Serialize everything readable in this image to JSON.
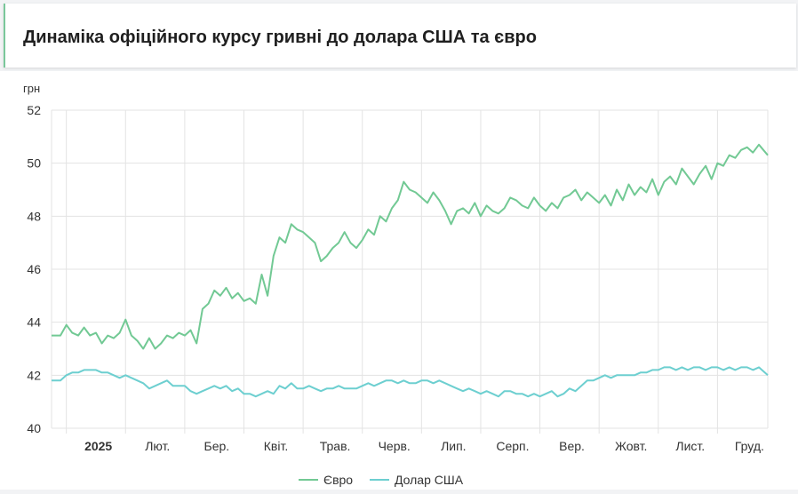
{
  "page": {
    "title": "Динаміка офіційного курсу гривні до долара США та євро"
  },
  "chart_data": {
    "type": "line",
    "title": "Динаміка офіційного курсу гривні до долара США та євро",
    "ylabel": "грн",
    "ylim": [
      40,
      52
    ],
    "yticks": [
      40,
      42,
      44,
      46,
      48,
      50,
      52
    ],
    "xlim": [
      -0.25,
      11.85
    ],
    "x_tick_labels": [
      "2025",
      "Лют.",
      "Бер.",
      "Квіт.",
      "Трав.",
      "Черв.",
      "Лип.",
      "Серп.",
      "Вер.",
      "Жовт.",
      "Лист.",
      "Груд."
    ],
    "x_tick_positions": [
      0,
      1,
      2,
      3,
      4,
      5,
      6,
      7,
      8,
      9,
      10,
      11
    ],
    "grid": true,
    "legend_position": "bottom",
    "series": [
      {
        "name": "Євро",
        "color": "#72c994",
        "x": [
          -0.25,
          -0.1,
          0.0,
          0.1,
          0.2,
          0.3,
          0.4,
          0.5,
          0.6,
          0.7,
          0.8,
          0.9,
          1.0,
          1.1,
          1.2,
          1.3,
          1.4,
          1.5,
          1.6,
          1.7,
          1.8,
          1.9,
          2.0,
          2.1,
          2.2,
          2.3,
          2.4,
          2.5,
          2.6,
          2.7,
          2.8,
          2.9,
          3.0,
          3.1,
          3.2,
          3.3,
          3.4,
          3.5,
          3.6,
          3.7,
          3.8,
          3.9,
          4.0,
          4.1,
          4.2,
          4.3,
          4.4,
          4.5,
          4.6,
          4.7,
          4.8,
          4.9,
          5.0,
          5.1,
          5.2,
          5.3,
          5.4,
          5.5,
          5.6,
          5.7,
          5.8,
          5.9,
          6.0,
          6.1,
          6.2,
          6.3,
          6.4,
          6.5,
          6.6,
          6.7,
          6.8,
          6.9,
          7.0,
          7.1,
          7.2,
          7.3,
          7.4,
          7.5,
          7.6,
          7.7,
          7.8,
          7.9,
          8.0,
          8.1,
          8.2,
          8.3,
          8.4,
          8.5,
          8.6,
          8.7,
          8.8,
          8.9,
          9.0,
          9.1,
          9.2,
          9.3,
          9.4,
          9.5,
          9.6,
          9.7,
          9.8,
          9.9,
          10.0,
          10.1,
          10.2,
          10.3,
          10.4,
          10.5,
          10.6,
          10.7,
          10.8,
          10.9,
          11.0,
          11.1,
          11.2,
          11.3,
          11.4,
          11.5,
          11.6,
          11.7,
          11.85
        ],
        "values": [
          43.5,
          43.5,
          43.9,
          43.6,
          43.5,
          43.8,
          43.5,
          43.6,
          43.2,
          43.5,
          43.4,
          43.6,
          44.1,
          43.5,
          43.3,
          43.0,
          43.4,
          43.0,
          43.2,
          43.5,
          43.4,
          43.6,
          43.5,
          43.7,
          43.2,
          44.5,
          44.7,
          45.2,
          45.0,
          45.3,
          44.9,
          45.1,
          44.8,
          44.9,
          44.7,
          45.8,
          45.0,
          46.5,
          47.2,
          47.0,
          47.7,
          47.5,
          47.4,
          47.2,
          47.0,
          46.3,
          46.5,
          46.8,
          47.0,
          47.4,
          47.0,
          46.8,
          47.1,
          47.5,
          47.3,
          48.0,
          47.8,
          48.3,
          48.6,
          49.3,
          49.0,
          48.9,
          48.7,
          48.5,
          48.9,
          48.6,
          48.2,
          47.7,
          48.2,
          48.3,
          48.1,
          48.5,
          48.0,
          48.4,
          48.2,
          48.1,
          48.3,
          48.7,
          48.6,
          48.4,
          48.3,
          48.7,
          48.4,
          48.2,
          48.5,
          48.3,
          48.7,
          48.8,
          49.0,
          48.6,
          48.9,
          48.7,
          48.5,
          48.8,
          48.4,
          49.0,
          48.6,
          49.2,
          48.8,
          49.1,
          48.9,
          49.4,
          48.8,
          49.3,
          49.5,
          49.2,
          49.8,
          49.5,
          49.2,
          49.6,
          49.9,
          49.4,
          50.0,
          49.9,
          50.3,
          50.2,
          50.5,
          50.6,
          50.4,
          50.7,
          50.3
        ],
        "values_scale_note": ""
      },
      {
        "name": "Долар США",
        "color": "#6dcfd0",
        "x": [
          -0.25,
          -0.1,
          0.0,
          0.1,
          0.2,
          0.3,
          0.4,
          0.5,
          0.6,
          0.7,
          0.8,
          0.9,
          1.0,
          1.1,
          1.2,
          1.3,
          1.4,
          1.5,
          1.6,
          1.7,
          1.8,
          1.9,
          2.0,
          2.1,
          2.2,
          2.3,
          2.4,
          2.5,
          2.6,
          2.7,
          2.8,
          2.9,
          3.0,
          3.1,
          3.2,
          3.3,
          3.4,
          3.5,
          3.6,
          3.7,
          3.8,
          3.9,
          4.0,
          4.1,
          4.2,
          4.3,
          4.4,
          4.5,
          4.6,
          4.7,
          4.8,
          4.9,
          5.0,
          5.1,
          5.2,
          5.3,
          5.4,
          5.5,
          5.6,
          5.7,
          5.8,
          5.9,
          6.0,
          6.1,
          6.2,
          6.3,
          6.4,
          6.5,
          6.6,
          6.7,
          6.8,
          6.9,
          7.0,
          7.1,
          7.2,
          7.3,
          7.4,
          7.5,
          7.6,
          7.7,
          7.8,
          7.9,
          8.0,
          8.1,
          8.2,
          8.3,
          8.4,
          8.5,
          8.6,
          8.7,
          8.8,
          8.9,
          9.0,
          9.1,
          9.2,
          9.3,
          9.4,
          9.5,
          9.6,
          9.7,
          9.8,
          9.9,
          10.0,
          10.1,
          10.2,
          10.3,
          10.4,
          10.5,
          10.6,
          10.7,
          10.8,
          10.9,
          11.0,
          11.1,
          11.2,
          11.3,
          11.4,
          11.5,
          11.6,
          11.7,
          11.85
        ],
        "values": [
          41.8,
          41.8,
          42.0,
          42.1,
          42.1,
          42.2,
          42.2,
          42.2,
          42.1,
          42.1,
          42.0,
          41.9,
          42.0,
          41.9,
          41.8,
          41.7,
          41.5,
          41.6,
          41.7,
          41.8,
          41.6,
          41.6,
          41.6,
          41.4,
          41.3,
          41.4,
          41.5,
          41.6,
          41.5,
          41.6,
          41.4,
          41.5,
          41.3,
          41.3,
          41.2,
          41.3,
          41.4,
          41.3,
          41.6,
          41.5,
          41.7,
          41.5,
          41.5,
          41.6,
          41.5,
          41.4,
          41.5,
          41.5,
          41.6,
          41.5,
          41.5,
          41.5,
          41.6,
          41.7,
          41.6,
          41.7,
          41.8,
          41.8,
          41.7,
          41.8,
          41.7,
          41.7,
          41.8,
          41.8,
          41.7,
          41.8,
          41.7,
          41.6,
          41.5,
          41.4,
          41.5,
          41.4,
          41.3,
          41.4,
          41.3,
          41.2,
          41.4,
          41.4,
          41.3,
          41.3,
          41.2,
          41.3,
          41.2,
          41.3,
          41.4,
          41.2,
          41.3,
          41.5,
          41.4,
          41.6,
          41.8,
          41.8,
          41.9,
          42.0,
          41.9,
          42.0,
          42.0,
          42.0,
          42.0,
          42.1,
          42.1,
          42.2,
          42.2,
          42.3,
          42.3,
          42.2,
          42.3,
          42.2,
          42.3,
          42.3,
          42.2,
          42.3,
          42.3,
          42.2,
          42.3,
          42.2,
          42.3,
          42.3,
          42.2,
          42.3,
          42.0
        ]
      }
    ]
  }
}
